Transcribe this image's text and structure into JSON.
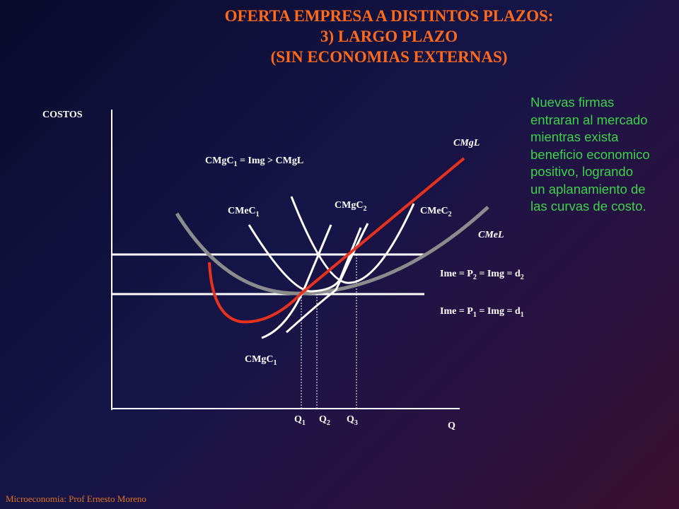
{
  "title": {
    "line1": "OFERTA EMPRESA A DISTINTOS PLAZOS:",
    "line2": "3) LARGO PLAZO",
    "line3": "(SIN ECONOMIAS EXTERNAS)"
  },
  "note": {
    "lines": [
      "Nuevas firmas",
      "entraran al mercado",
      "mientras exista",
      "beneficio economico",
      "positivo, logrando",
      "un aplanamiento de",
      "las curvas de costo."
    ]
  },
  "axes": {
    "y_label": "COSTOS",
    "x_label": "Q"
  },
  "labels": {
    "cmgc1_top": {
      "base": "CMgC",
      "sub": "1",
      "rest": " = Img > CMgL"
    },
    "cmgl": "CMgL",
    "cmel": "CMeL",
    "cmec1": {
      "base": "CMeC",
      "sub": "1"
    },
    "cmgc2": {
      "base": "CMgC",
      "sub": "2"
    },
    "cmec2": {
      "base": "CMeC",
      "sub": "2"
    },
    "cmgc1_bottom": {
      "base": "CMgC",
      "sub": "1"
    },
    "line_p2": {
      "a": "Ime = P",
      "sub1": "2",
      "b": " = Img = d",
      "sub2": "2"
    },
    "line_p1": {
      "a": "Ime = P",
      "sub1": "1",
      "b": " = Img = d",
      "sub2": "1"
    },
    "q1": {
      "base": "Q",
      "sub": "1"
    },
    "q2": {
      "base": "Q",
      "sub": "2"
    },
    "q3": {
      "base": "Q",
      "sub": "3"
    }
  },
  "colors": {
    "title": "#ff6a1a",
    "note": "#3ed24a",
    "cmgl": "#e8321e",
    "cmel": "#8c8c8c",
    "short_run": "#ffffff",
    "footer": "#e07020"
  },
  "footer": "Microeconomía:  Prof Ernesto Moreno"
}
